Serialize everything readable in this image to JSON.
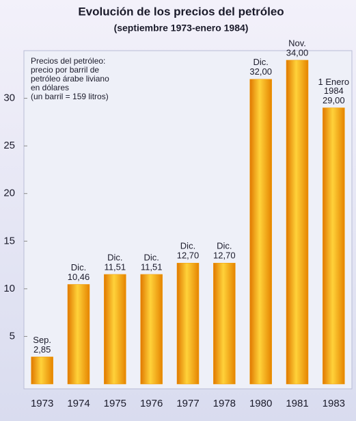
{
  "chart_data": {
    "type": "bar",
    "title": "Evolución de los precios del petróleo",
    "subtitle": "(septiembre 1973-enero 1984)",
    "note": [
      "Precios del petróleo:",
      "precio por barril de",
      "petróleo árabe liviano",
      "en dólares",
      "(un barril = 159 litros)"
    ],
    "categories": [
      "1973",
      "1974",
      "1975",
      "1976",
      "1977",
      "1978",
      "1980",
      "1981",
      "1983"
    ],
    "values": [
      2.85,
      10.46,
      11.51,
      11.51,
      12.7,
      12.7,
      32.0,
      34.0,
      29.0
    ],
    "value_labels": [
      "2,85",
      "10,46",
      "11,51",
      "11,51",
      "12,70",
      "12,70",
      "32,00",
      "34,00",
      "29,00"
    ],
    "annotations": [
      [
        "Sep."
      ],
      [
        "Dic."
      ],
      [
        "Dic."
      ],
      [
        "Dic."
      ],
      [
        "Dic."
      ],
      [
        "Dic."
      ],
      [
        "Dic."
      ],
      [
        "Nov."
      ],
      [
        "1 Enero",
        "1984"
      ]
    ],
    "color": "#f29a00",
    "ylim": [
      0,
      35
    ],
    "yticks": [
      5,
      10,
      15,
      20,
      25,
      30
    ],
    "grid": false
  }
}
